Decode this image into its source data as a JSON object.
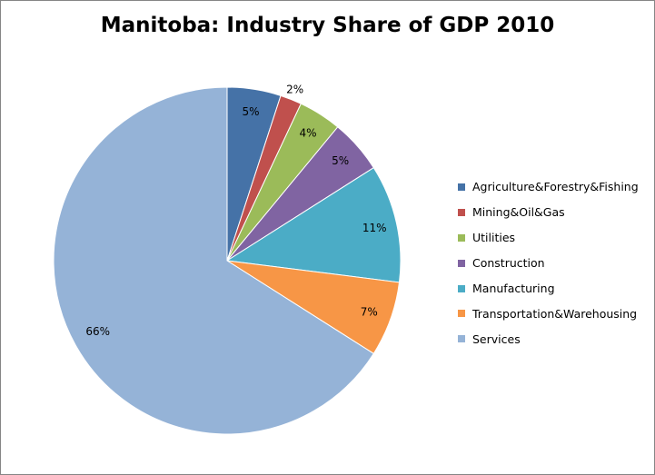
{
  "chart_data": {
    "type": "pie",
    "title": "Manitoba: Industry Share of GDP 2010",
    "categories": [
      "Agriculture&Forestry&Fishing",
      "Mining&Oil&Gas",
      "Utilities",
      "Construction",
      "Manufacturing",
      "Transportation&Warehousing",
      "Services"
    ],
    "values": [
      5,
      2,
      4,
      5,
      11,
      7,
      66
    ],
    "data_labels": [
      "5%",
      "2%",
      "4%",
      "5%",
      "11%",
      "7%",
      "66%"
    ],
    "colors": [
      "#4572A7",
      "#C0504D",
      "#9BBB59",
      "#8064A2",
      "#4BACC6",
      "#F79646",
      "#95B3D7"
    ],
    "legend_position": "right"
  }
}
